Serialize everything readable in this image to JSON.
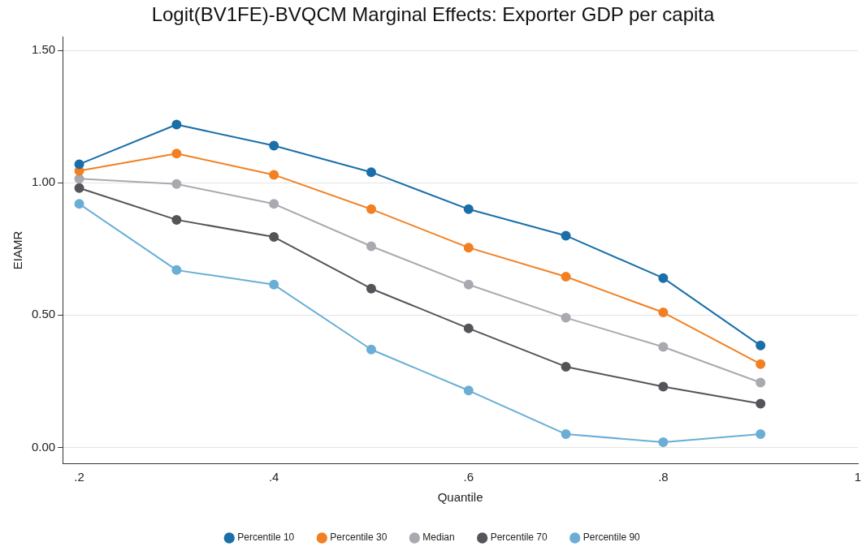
{
  "chart_data": {
    "type": "line",
    "title": "Logit(BV1FE)-BVQCM Marginal Effects: Exporter GDP per capita",
    "xlabel": "Quantile",
    "ylabel": "EIAMR",
    "x": [
      0.2,
      0.3,
      0.4,
      0.5,
      0.6,
      0.7,
      0.8,
      0.9
    ],
    "xlim": [
      0.183,
      1.0
    ],
    "xticks": [
      {
        "value": 0.2,
        "label": ".2"
      },
      {
        "value": 0.4,
        "label": ".4"
      },
      {
        "value": 0.6,
        "label": ".6"
      },
      {
        "value": 0.8,
        "label": ".8"
      },
      1
    ],
    "ylim": [
      -0.06,
      1.55
    ],
    "yticks": [
      {
        "value": 0,
        "label": "0.00"
      },
      {
        "value": 0.5,
        "label": "0.50"
      },
      {
        "value": 1,
        "label": "1.00"
      },
      {
        "value": 1.5,
        "label": "1.50"
      }
    ],
    "grid": "y",
    "legend": "bottom",
    "marker": "circle",
    "line_style": "solid",
    "series": [
      {
        "name": "Percentile 10",
        "color": "#1a6fa8",
        "values": [
          1.07,
          1.22,
          1.14,
          1.04,
          0.9,
          0.8,
          0.64,
          0.385
        ]
      },
      {
        "name": "Percentile 30",
        "color": "#f28022",
        "values": [
          1.045,
          1.11,
          1.03,
          0.9,
          0.755,
          0.645,
          0.51,
          0.315
        ]
      },
      {
        "name": "Median",
        "color": "#a8aab0",
        "values": [
          1.015,
          0.995,
          0.92,
          0.76,
          0.615,
          0.49,
          0.38,
          0.245
        ]
      },
      {
        "name": "Percentile 70",
        "color": "#545559",
        "values": [
          0.98,
          0.86,
          0.795,
          0.6,
          0.45,
          0.305,
          0.23,
          0.165
        ]
      },
      {
        "name": "Percentile 90",
        "color": "#6aaed6",
        "values": [
          0.92,
          0.67,
          0.615,
          0.37,
          0.215,
          0.05,
          0.02,
          0.05
        ]
      }
    ]
  }
}
